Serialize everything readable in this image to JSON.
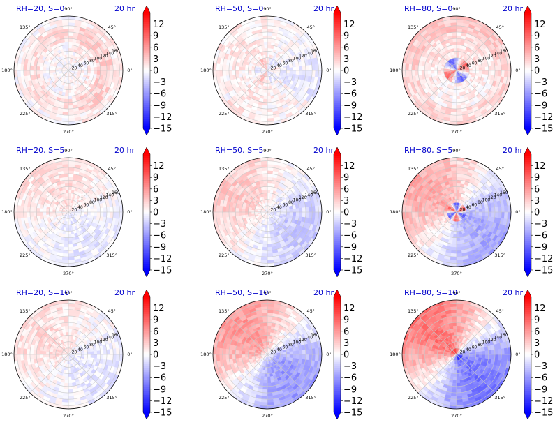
{
  "chart_data": {
    "type": "heatmap",
    "projection": "polar",
    "time_label": "20 hr",
    "angle_ticks": [
      "0°",
      "45°",
      "90°",
      "135°",
      "180°",
      "225°",
      "270°",
      "315°"
    ],
    "radial_ticks": [
      "20",
      "40",
      "60",
      "80",
      "100",
      "120",
      "140",
      "160"
    ],
    "rlim": [
      0,
      170
    ],
    "colormap": "bwr",
    "colorbar": {
      "ticks": [
        "12",
        "9",
        "6",
        "3",
        "0",
        "−3",
        "−6",
        "−9",
        "−12",
        "−15"
      ],
      "tick_values": [
        12,
        9,
        6,
        3,
        0,
        -3,
        -6,
        -9,
        -12,
        -15
      ],
      "vmin": -15,
      "vmax": 15,
      "extend": "both"
    },
    "colors": {
      "positive": "#ff0000",
      "negative": "#0000ff",
      "zero": "#ffffff",
      "label": "#0000cc"
    },
    "panels": [
      {
        "label": "RH=20, S=0",
        "row": 0,
        "col": 0,
        "pattern": "weak-positive-ring",
        "positive_fraction": 0.5,
        "peak_amplitude": 4
      },
      {
        "label": "RH=50, S=0",
        "row": 0,
        "col": 1,
        "pattern": "weak-mixed",
        "positive_fraction": 0.5,
        "peak_amplitude": 6
      },
      {
        "label": "RH=80, S=0",
        "row": 0,
        "col": 2,
        "pattern": "positive-outer-core-dipole",
        "positive_fraction": 0.6,
        "peak_amplitude": 12
      },
      {
        "label": "RH=20, S=5",
        "row": 1,
        "col": 0,
        "pattern": "weak-positive-upper-left",
        "positive_fraction": 0.55,
        "peak_amplitude": 4
      },
      {
        "label": "RH=50, S=5",
        "row": 1,
        "col": 1,
        "pattern": "left-positive-right-negative",
        "positive_fraction": 0.5,
        "peak_amplitude": 6
      },
      {
        "label": "RH=80, S=5",
        "row": 1,
        "col": 2,
        "pattern": "left-positive-right-negative-strong",
        "positive_fraction": 0.5,
        "peak_amplitude": 12
      },
      {
        "label": "RH=20, S=10",
        "row": 2,
        "col": 0,
        "pattern": "weak-positive-left-negative-lower-right",
        "positive_fraction": 0.55,
        "peak_amplitude": 4
      },
      {
        "label": "RH=50, S=10",
        "row": 2,
        "col": 1,
        "pattern": "upper-left-positive-lower-right-negative",
        "positive_fraction": 0.5,
        "peak_amplitude": 9
      },
      {
        "label": "RH=80, S=10",
        "row": 2,
        "col": 2,
        "pattern": "upper-left-positive-lower-right-negative-strong",
        "positive_fraction": 0.5,
        "peak_amplitude": 12
      }
    ]
  }
}
